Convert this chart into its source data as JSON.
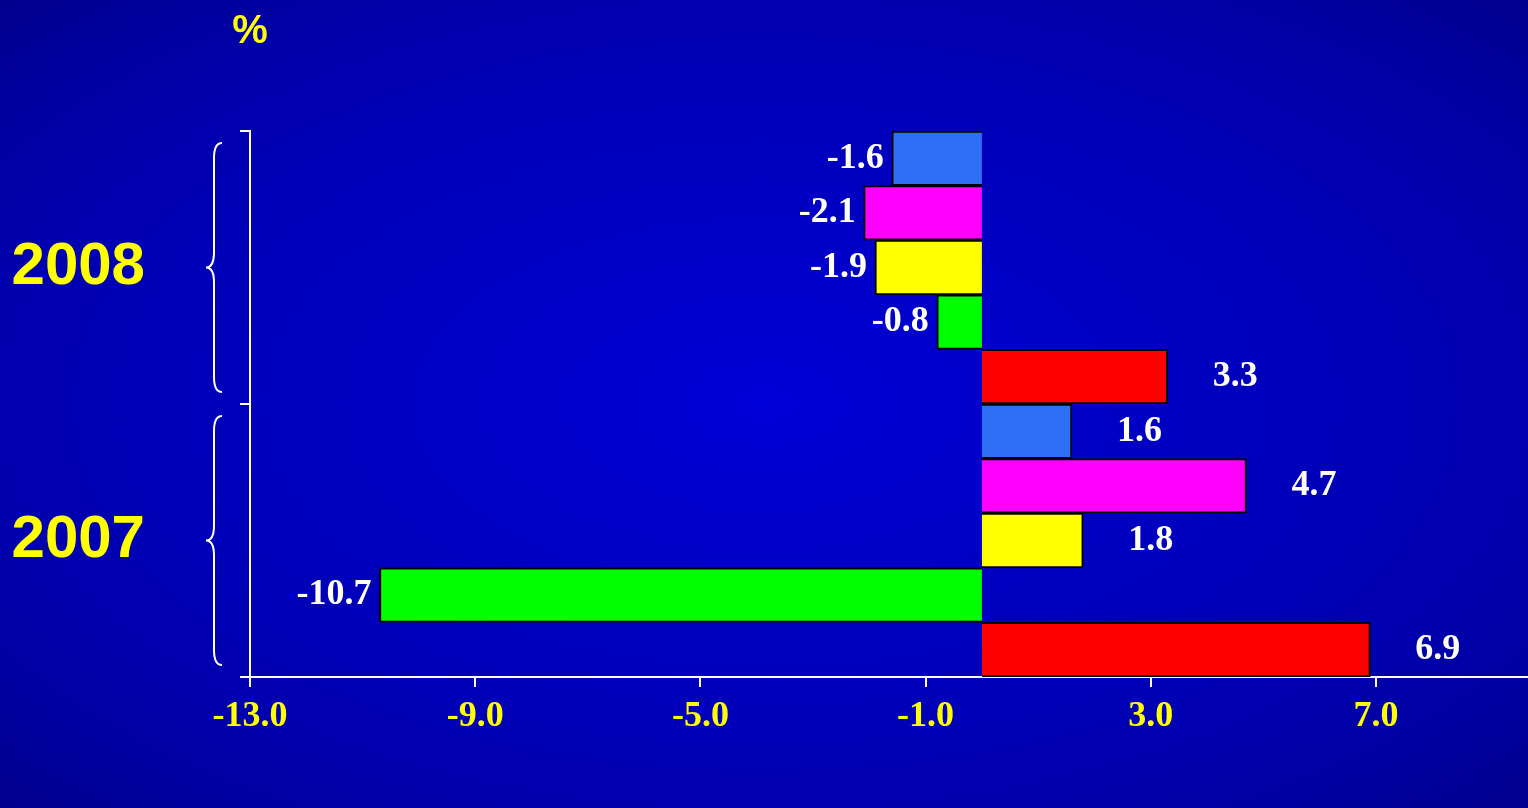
{
  "chart_data": {
    "type": "bar",
    "orientation": "horizontal",
    "categories": [
      "2008",
      "2007"
    ],
    "series": [
      {
        "color": "#2f6ff5",
        "values": [
          -1.6,
          1.6
        ]
      },
      {
        "color": "#ff00ff",
        "values": [
          -2.1,
          4.7
        ]
      },
      {
        "color": "#ffff00",
        "values": [
          -1.9,
          1.8
        ]
      },
      {
        "color": "#00ff00",
        "values": [
          -0.8,
          -10.7
        ]
      },
      {
        "color": "#ff0000",
        "values": [
          3.3,
          6.9
        ]
      }
    ],
    "xlim": [
      -13,
      9.7
    ],
    "xticks": [
      {
        "value": -13,
        "label": "-13.0"
      },
      {
        "value": -9,
        "label": "-9.0"
      },
      {
        "value": -5,
        "label": "-5.0"
      },
      {
        "value": -1,
        "label": "-1.0"
      },
      {
        "value": 3,
        "label": "3.0"
      },
      {
        "value": 7,
        "label": "7.0"
      }
    ],
    "annotations": [
      "%"
    ],
    "data_labels": true,
    "grid": false,
    "legend": false
  }
}
